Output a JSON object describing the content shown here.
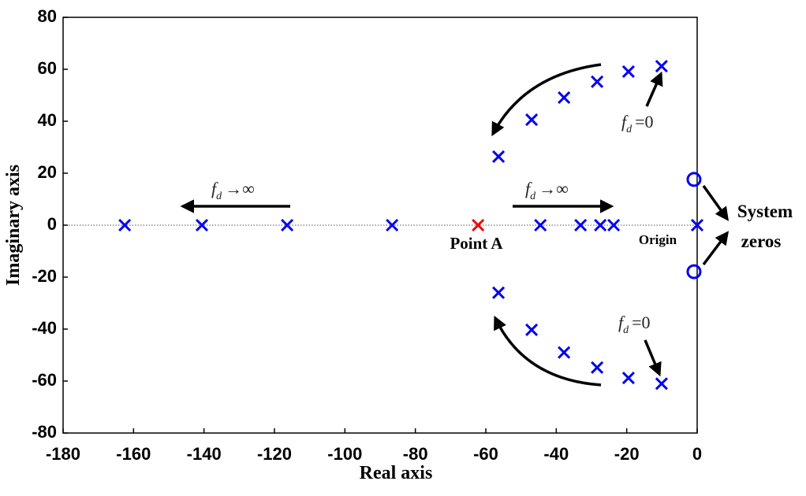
{
  "chart_data": {
    "type": "scatter",
    "xlabel": "Real axis",
    "ylabel": "Imaginary axis",
    "xlim": [
      -180,
      0
    ],
    "ylim": [
      -80,
      80
    ],
    "xticks": [
      -180,
      -160,
      -140,
      -120,
      -100,
      -80,
      -60,
      -40,
      -20,
      0
    ],
    "yticks": [
      -80,
      -60,
      -40,
      -20,
      0,
      20,
      40,
      60,
      80
    ],
    "series": [
      {
        "marker": "x",
        "color": "#0000ee",
        "x": [
          -162.5,
          -140.6,
          -116.4,
          -86.6,
          -44.5,
          -33.1,
          -27.5,
          -23.7,
          -56.4,
          -47,
          -37.8,
          -28.4,
          -19.5,
          -10.1,
          -56.4,
          -47,
          -37.8,
          -28.4,
          -19.5,
          -10.1,
          0
        ],
        "values": [
          0,
          0,
          0,
          0,
          0,
          0,
          0,
          0,
          26.4,
          40.6,
          49.1,
          55.2,
          59.1,
          61.2,
          -26,
          -40.3,
          -49,
          -54.8,
          -58.8,
          -61,
          0
        ]
      },
      {
        "marker": "x",
        "color": "#ee0000",
        "x": [
          -62.2
        ],
        "values": [
          0
        ]
      },
      {
        "marker": "o",
        "color": "#0000ee",
        "x": [
          -0.9,
          -0.9
        ],
        "values": [
          17.6,
          -17.9
        ]
      }
    ],
    "annotations": [
      {
        "base": "f",
        "sub": "d",
        "rest": "→∞"
      },
      {
        "base": "f",
        "sub": "d",
        "rest": "→∞"
      },
      {
        "base": "f",
        "sub": "d",
        "rest": "=0"
      },
      {
        "base": "f",
        "sub": "d",
        "rest": "=0"
      }
    ],
    "point_label": "Point A",
    "origin_label": "Origin",
    "zeros_label": [
      "System",
      "zeros"
    ]
  }
}
